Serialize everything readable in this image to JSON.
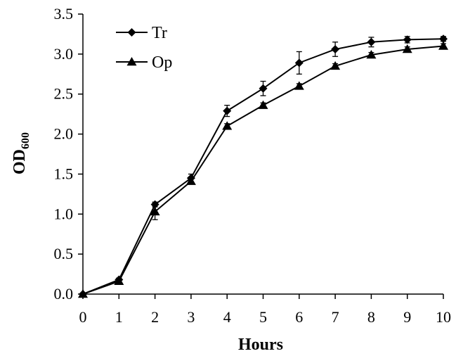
{
  "chart_data": {
    "type": "line",
    "title": "",
    "xlabel": "Hours",
    "ylabel_main": "OD",
    "ylabel_sub": "600",
    "xlim": [
      0,
      10
    ],
    "ylim": [
      0,
      3.5
    ],
    "x_ticks": [
      "0",
      "1",
      "2",
      "3",
      "4",
      "5",
      "6",
      "7",
      "8",
      "9",
      "10"
    ],
    "y_ticks": [
      "0.0",
      "0.5",
      "1.0",
      "1.5",
      "2.0",
      "2.5",
      "3.0",
      "3.5"
    ],
    "grid": false,
    "legend_position": "top-left",
    "x": [
      0,
      1,
      2,
      3,
      4,
      5,
      6,
      7,
      8,
      9,
      10
    ],
    "series": [
      {
        "name": "Tr",
        "marker": "diamond",
        "values": [
          0.0,
          0.18,
          1.12,
          1.45,
          2.29,
          2.57,
          2.89,
          3.06,
          3.15,
          3.18,
          3.19
        ],
        "errors": [
          0.0,
          0.02,
          0.03,
          0.05,
          0.07,
          0.09,
          0.14,
          0.09,
          0.06,
          0.04,
          0.03
        ]
      },
      {
        "name": "Op",
        "marker": "triangle",
        "values": [
          0.0,
          0.16,
          1.03,
          1.41,
          2.1,
          2.36,
          2.6,
          2.85,
          2.99,
          3.06,
          3.1
        ],
        "errors": [
          0.0,
          0.02,
          0.1,
          0.03,
          0.03,
          0.03,
          0.03,
          0.03,
          0.03,
          0.03,
          0.03
        ]
      }
    ]
  }
}
